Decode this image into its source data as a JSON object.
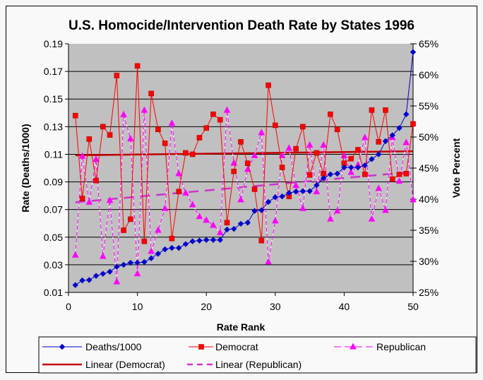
{
  "chart_data": {
    "type": "line",
    "title": "U.S. Homocide/Intervention Death Rate by States 1996",
    "xlabel": "Rate Rank",
    "ylabel": "Rate (Deaths/1000)",
    "y2label": "Vote Percent",
    "xlim": [
      0,
      50
    ],
    "ylim": [
      0.01,
      0.19
    ],
    "y2lim": [
      25,
      65
    ],
    "x_ticks": [
      "0",
      "10",
      "20",
      "30",
      "40",
      "50"
    ],
    "y_ticks": [
      "0.19",
      "0.17",
      "0.15",
      "0.13",
      "0.11",
      "0.09",
      "0.07",
      "0.05",
      "0.03",
      "0.01"
    ],
    "y2_ticks": [
      "65%",
      "60%",
      "55%",
      "50%",
      "45%",
      "40%",
      "35%",
      "30%",
      "25%"
    ],
    "grid": true,
    "legend_position": "bottom",
    "x": [
      1,
      2,
      3,
      4,
      5,
      6,
      7,
      8,
      9,
      10,
      11,
      12,
      13,
      14,
      15,
      16,
      17,
      18,
      19,
      20,
      21,
      22,
      23,
      24,
      25,
      26,
      27,
      28,
      29,
      30,
      31,
      32,
      33,
      34,
      35,
      36,
      37,
      38,
      39,
      40,
      41,
      42,
      43,
      44,
      45,
      46,
      47,
      48,
      49,
      50
    ],
    "series": [
      {
        "name": "Deaths/1000",
        "axis": "left",
        "color": "#0000cc",
        "marker": "diamond",
        "values": [
          0.0153,
          0.0187,
          0.019,
          0.022,
          0.0235,
          0.025,
          0.0286,
          0.03,
          0.0315,
          0.0315,
          0.032,
          0.0347,
          0.038,
          0.0412,
          0.0422,
          0.0422,
          0.045,
          0.047,
          0.0475,
          0.048,
          0.048,
          0.048,
          0.0555,
          0.056,
          0.0597,
          0.0605,
          0.069,
          0.0695,
          0.0755,
          0.0789,
          0.0795,
          0.082,
          0.083,
          0.0833,
          0.0833,
          0.0876,
          0.0927,
          0.0955,
          0.096,
          0.1005,
          0.1005,
          0.1005,
          0.102,
          0.1065,
          0.11,
          0.1195,
          0.1238,
          0.129,
          0.139,
          0.184
        ]
      },
      {
        "name": "Democrat",
        "axis": "left",
        "color": "#ff0000",
        "marker": "square",
        "values": [
          0.138,
          0.078,
          0.121,
          0.091,
          0.13,
          0.124,
          0.167,
          0.055,
          0.063,
          0.174,
          0.047,
          0.154,
          0.128,
          0.118,
          0.049,
          0.083,
          0.111,
          0.11,
          0.122,
          0.129,
          0.139,
          0.135,
          0.0605,
          0.0976,
          0.119,
          0.1035,
          0.0847,
          0.0475,
          0.16,
          0.131,
          0.1005,
          0.0795,
          0.114,
          0.13,
          0.095,
          0.111,
          0.096,
          0.139,
          0.128,
          0.1035,
          0.1068,
          0.1133,
          0.0955,
          0.142,
          0.119,
          0.142,
          0.092,
          0.0955,
          0.096,
          0.132
        ]
      },
      {
        "name": "Republican",
        "axis": "right",
        "color": "#ff00ff",
        "marker": "triangle",
        "values": [
          31.0,
          46.9,
          39.5,
          46.4,
          30.8,
          39.8,
          26.7,
          53.6,
          49.7,
          28.0,
          54.3,
          31.6,
          35.0,
          38.5,
          52.2,
          44.1,
          41.0,
          39.1,
          37.2,
          36.6,
          35.8,
          34.6,
          54.3,
          45.8,
          39.9,
          44.8,
          47.0,
          50.7,
          29.9,
          36.5,
          47.0,
          48.2,
          42.2,
          38.5,
          48.7,
          41.2,
          48.7,
          36.8,
          38.1,
          47.0,
          44.3,
          45.5,
          49.9,
          36.8,
          41.7,
          38.2,
          49.9,
          42.9,
          49.1,
          39.9
        ]
      }
    ],
    "trendlines": [
      {
        "name": "Linear (Democrat)",
        "axis": "left",
        "color": "#c00000",
        "style": "solid",
        "start": [
          1,
          0.1093
        ],
        "end": [
          50,
          0.1122
        ]
      },
      {
        "name": "Linear (Republican)",
        "axis": "right",
        "color": "#cc33cc",
        "style": "dashed",
        "start": [
          1,
          39.5
        ],
        "end": [
          50,
          44.4
        ]
      }
    ]
  }
}
